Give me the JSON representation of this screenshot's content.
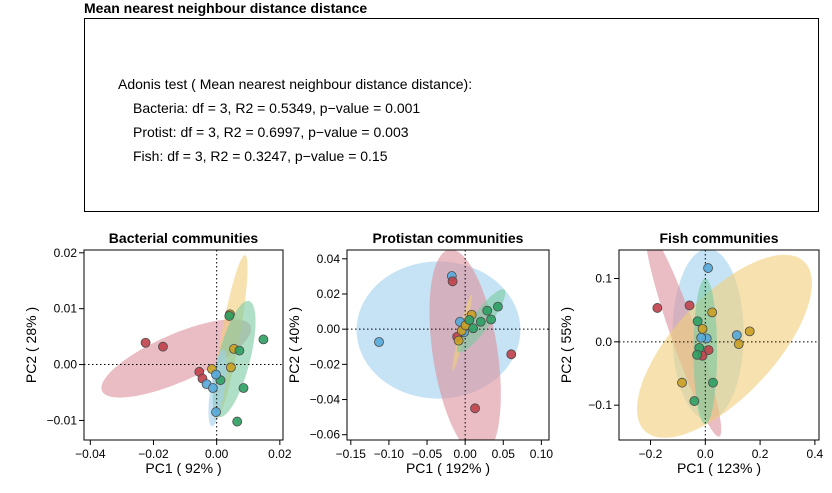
{
  "header": {
    "title": "Mean nearest neighbour distance distance"
  },
  "stats": {
    "heading": "Adonis test ( Mean nearest neighbour distance  distance):",
    "lines": [
      "Bacteria: df = 3, R2 = 0.5349, p−value = 0.001",
      "Protist: df = 3, R2 = 0.6997, p−value = 0.003",
      "Fish: df = 3, R2 = 0.3247, p−value = 0.15"
    ]
  },
  "colors": {
    "red": "#c0404a",
    "yellow": "#c9a022",
    "green": "#2e9e63",
    "blue": "#55a9d9",
    "ellipse_red": "#dc8f9b",
    "ellipse_yellow": "#f1cf7a",
    "ellipse_green": "#79c9a0",
    "ellipse_blue": "#9fd0ee"
  },
  "chart_data": [
    {
      "type": "scatter",
      "title": "Bacterial communities",
      "xlabel": "PC1 ( 92% )",
      "ylabel": "PC2 ( 28% )",
      "xlim": [
        -0.042,
        0.021
      ],
      "ylim": [
        -0.0135,
        0.0205
      ],
      "xticks": [
        -0.04,
        -0.02,
        0.0,
        0.02
      ],
      "xtick_labels": [
        "−0.04",
        "−0.02",
        "0.00",
        "0.02"
      ],
      "yticks": [
        -0.01,
        0.0,
        0.01,
        0.02
      ],
      "ytick_labels": [
        "−0.01",
        "0.00",
        "0.01",
        "0.02"
      ],
      "reference_lines": {
        "x": 0,
        "y": 0
      },
      "ellipses": [
        {
          "group": "red",
          "center": [
            -0.0128,
            0.0011
          ],
          "semi_axes": [
            0.0243,
            0.0045
          ],
          "angle_deg": 13
        },
        {
          "group": "yellow",
          "center": [
            0.0043,
            0.0048
          ],
          "semi_axes": [
            0.0155,
            0.0028
          ],
          "angle_deg": 72
        },
        {
          "group": "green",
          "center": [
            0.0055,
            0.001
          ],
          "semi_axes": [
            0.0115,
            0.0047
          ],
          "angle_deg": 62
        },
        {
          "group": "blue",
          "center": [
            0.0003,
            -0.0042
          ],
          "semi_axes": [
            0.0071,
            0.0022
          ],
          "angle_deg": 74
        }
      ],
      "points": [
        {
          "group": "red",
          "x": -0.0225,
          "y": 0.0039
        },
        {
          "group": "red",
          "x": -0.017,
          "y": 0.0032
        },
        {
          "group": "red",
          "x": -0.0055,
          "y": -0.0013
        },
        {
          "group": "red",
          "x": -0.0045,
          "y": -0.0025
        },
        {
          "group": "yellow",
          "x": 0.0042,
          "y": 0.009
        },
        {
          "group": "yellow",
          "x": 0.0055,
          "y": 0.0028
        },
        {
          "group": "yellow",
          "x": 0.0045,
          "y": -0.0005
        },
        {
          "group": "yellow",
          "x": -0.0015,
          "y": -0.0008
        },
        {
          "group": "green",
          "x": 0.0148,
          "y": 0.0045
        },
        {
          "group": "green",
          "x": 0.004,
          "y": 0.0087
        },
        {
          "group": "green",
          "x": 0.0072,
          "y": 0.0025
        },
        {
          "group": "green",
          "x": 0.0085,
          "y": -0.0042
        },
        {
          "group": "green",
          "x": 0.0065,
          "y": -0.0102
        },
        {
          "group": "green",
          "x": 0.0012,
          "y": -0.0028
        },
        {
          "group": "blue",
          "x": -0.0032,
          "y": -0.0035
        },
        {
          "group": "blue",
          "x": -0.0002,
          "y": -0.0018
        },
        {
          "group": "blue",
          "x": -0.0012,
          "y": -0.0042
        },
        {
          "group": "blue",
          "x": -0.0002,
          "y": -0.0085
        }
      ]
    },
    {
      "type": "scatter",
      "title": "Protistan communities",
      "xlabel": "PC1 ( 192% )",
      "ylabel": "PC2 ( 40% )",
      "xlim": [
        -0.155,
        0.11
      ],
      "ylim": [
        -0.063,
        0.045
      ],
      "xticks": [
        -0.15,
        -0.1,
        -0.05,
        0.0,
        0.05,
        0.1
      ],
      "xtick_labels": [
        "−0.15",
        "−0.10",
        "−0.05",
        "0.00",
        "0.05",
        "0.10"
      ],
      "yticks": [
        -0.06,
        -0.04,
        -0.02,
        0.0,
        0.02,
        0.04
      ],
      "ytick_labels": [
        "−0.06",
        "−0.04",
        "−0.02",
        "0.00",
        "0.02",
        "0.04"
      ],
      "reference_lines": {
        "x": 0,
        "y": 0
      },
      "ellipses": [
        {
          "group": "blue",
          "center": [
            -0.035,
            -0.0005
          ],
          "semi_axes": [
            0.1075,
            0.039
          ],
          "angle_deg": 0
        },
        {
          "group": "red",
          "center": [
            0.0,
            -0.0135
          ],
          "semi_axes": [
            0.064,
            0.0395
          ],
          "angle_deg": -60
        },
        {
          "group": "yellow",
          "center": [
            -0.004,
            -0.002
          ],
          "semi_axes": [
            0.025,
            0.0035
          ],
          "angle_deg": 60
        },
        {
          "group": "green",
          "center": [
            0.021,
            0.0047
          ],
          "semi_axes": [
            0.0357,
            0.0074
          ],
          "angle_deg": 28
        }
      ],
      "points": [
        {
          "group": "blue",
          "x": -0.113,
          "y": -0.0073
        },
        {
          "group": "blue",
          "x": -0.0175,
          "y": 0.0302
        },
        {
          "group": "blue",
          "x": -0.0068,
          "y": 0.0042
        },
        {
          "group": "blue",
          "x": -0.0015,
          "y": -0.0018
        },
        {
          "group": "red",
          "x": 0.0605,
          "y": -0.0143
        },
        {
          "group": "red",
          "x": 0.013,
          "y": -0.045
        },
        {
          "group": "red",
          "x": -0.0165,
          "y": 0.0272
        },
        {
          "group": "red",
          "x": -0.0105,
          "y": -0.0043
        },
        {
          "group": "yellow",
          "x": -0.0085,
          "y": -0.0065
        },
        {
          "group": "yellow",
          "x": -0.0045,
          "y": -0.0009
        },
        {
          "group": "yellow",
          "x": 0.0005,
          "y": 0.0022
        },
        {
          "group": "yellow",
          "x": 0.0085,
          "y": 0.0082
        },
        {
          "group": "green",
          "x": 0.043,
          "y": 0.0128
        },
        {
          "group": "green",
          "x": 0.029,
          "y": 0.0105
        },
        {
          "group": "green",
          "x": 0.034,
          "y": 0.0055
        },
        {
          "group": "green",
          "x": 0.0205,
          "y": 0.0042
        },
        {
          "group": "green",
          "x": 0.0105,
          "y": 0.0005
        },
        {
          "group": "green",
          "x": 0.0055,
          "y": 0.0052
        }
      ]
    },
    {
      "type": "scatter",
      "title": "Fish communities",
      "xlabel": "PC1 ( 123% )",
      "ylabel": "PC2 ( 55% )",
      "xlim": [
        -0.315,
        0.415
      ],
      "ylim": [
        -0.155,
        0.145
      ],
      "xticks": [
        -0.2,
        0.0,
        0.2,
        0.4
      ],
      "xtick_labels": [
        "−0.2",
        "0.0",
        "0.2",
        "0.4"
      ],
      "yticks": [
        -0.1,
        0.0,
        0.1
      ],
      "ytick_labels": [
        "−0.1",
        "0.0",
        "0.1"
      ],
      "reference_lines": {
        "x": 0,
        "y": 0
      },
      "ellipses": [
        {
          "group": "blue",
          "center": [
            0.01,
            0.012
          ],
          "semi_axes": [
            0.13,
            0.135
          ],
          "angle_deg": 0
        },
        {
          "group": "red",
          "center": [
            -0.08,
            0.013
          ],
          "semi_axes": [
            0.21,
            0.038
          ],
          "angle_deg": -50
        },
        {
          "group": "yellow",
          "center": [
            0.07,
            -0.007
          ],
          "semi_axes": [
            0.336,
            0.1
          ],
          "angle_deg": 19
        },
        {
          "group": "green",
          "center": [
            0.0,
            -0.015
          ],
          "semi_axes": [
            0.115,
            0.043
          ],
          "angle_deg": 90
        }
      ],
      "points": [
        {
          "group": "red",
          "x": -0.175,
          "y": 0.0535
        },
        {
          "group": "red",
          "x": -0.0575,
          "y": 0.0575
        },
        {
          "group": "red",
          "x": 0.012,
          "y": -0.013
        },
        {
          "group": "red",
          "x": -0.01,
          "y": -0.022
        },
        {
          "group": "blue",
          "x": 0.01,
          "y": 0.1165
        },
        {
          "group": "blue",
          "x": 0.115,
          "y": 0.0105
        },
        {
          "group": "blue",
          "x": 0.005,
          "y": 0.0055
        },
        {
          "group": "blue",
          "x": -0.015,
          "y": 0.0065
        },
        {
          "group": "yellow",
          "x": -0.085,
          "y": -0.0645
        },
        {
          "group": "yellow",
          "x": 0.025,
          "y": 0.0465
        },
        {
          "group": "yellow",
          "x": 0.162,
          "y": 0.0165
        },
        {
          "group": "yellow",
          "x": 0.122,
          "y": -0.0035
        },
        {
          "group": "yellow",
          "x": -0.01,
          "y": 0.0205
        },
        {
          "group": "green",
          "x": -0.028,
          "y": 0.0325
        },
        {
          "group": "green",
          "x": -0.022,
          "y": -0.0095
        },
        {
          "group": "green",
          "x": -0.03,
          "y": -0.0205
        },
        {
          "group": "green",
          "x": 0.028,
          "y": -0.0645
        },
        {
          "group": "green",
          "x": -0.04,
          "y": -0.0935
        }
      ]
    }
  ]
}
